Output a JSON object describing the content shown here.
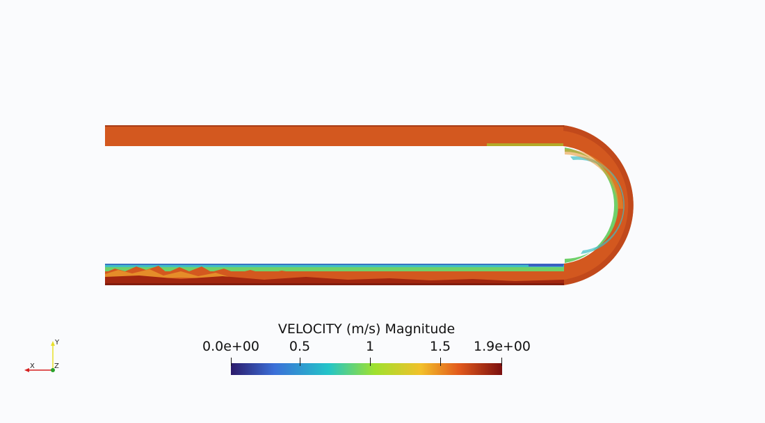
{
  "scalar_bar": {
    "title": "VELOCITY (m/s) Magnitude",
    "tick_labels": [
      "0.0e+00",
      "0.5",
      "1",
      "1.5",
      "1.9e+00"
    ],
    "tick_values": [
      0.0,
      0.5,
      1.0,
      1.5,
      1.9
    ],
    "range": [
      0.0,
      1.9
    ],
    "colormap": [
      "#2b1a6a",
      "#3b6fd8",
      "#23c4c8",
      "#9fe12e",
      "#f2c02a",
      "#e25a1c",
      "#7a0f0f"
    ]
  },
  "orientation_axes": {
    "x_label": "X",
    "y_label": "Y",
    "z_label": "Z",
    "x_color": "#d52020",
    "y_color": "#e8e02a",
    "z_color": "#2aa22a"
  },
  "flow_colors": {
    "bulk": "#d3581f",
    "fast": "#a1260f",
    "mid": "#e8962b",
    "slow_green": "#6fd06a",
    "slow_cyan": "#3fbfc5",
    "slow_blue": "#3a5fc0"
  }
}
